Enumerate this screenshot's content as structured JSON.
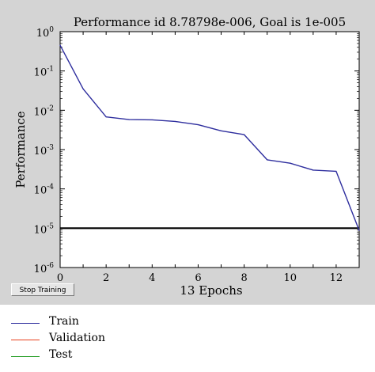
{
  "chart_data": {
    "type": "line",
    "title": "Performance id 8.78798e-006, Goal is 1e-005",
    "xlabel": "13 Epochs",
    "ylabel": "Performance",
    "xlim": [
      0,
      13
    ],
    "ylim_log10": [
      -6,
      0
    ],
    "yscale": "log",
    "x_ticks": [
      "0",
      "2",
      "4",
      "6",
      "8",
      "10",
      "12"
    ],
    "y_ticks": [
      {
        "base": "10",
        "exp": "0"
      },
      {
        "base": "10",
        "exp": "-1"
      },
      {
        "base": "10",
        "exp": "-2"
      },
      {
        "base": "10",
        "exp": "-3"
      },
      {
        "base": "10",
        "exp": "-4"
      },
      {
        "base": "10",
        "exp": "-5"
      },
      {
        "base": "10",
        "exp": "-6"
      }
    ],
    "series": [
      {
        "name": "Train",
        "color": "#2e2e9e",
        "x": [
          0,
          1,
          2,
          3,
          4,
          5,
          6,
          7,
          8,
          9,
          10,
          11,
          12,
          13
        ],
        "y": [
          0.45,
          0.035,
          0.0068,
          0.0058,
          0.0057,
          0.0052,
          0.0043,
          0.003,
          0.0024,
          0.00055,
          0.00045,
          0.0003,
          0.00028,
          8.8e-06
        ]
      }
    ],
    "goal": {
      "value": 1e-05,
      "color": "#000000"
    },
    "legend": [
      {
        "label": "Train",
        "color": "#2e2e9e"
      },
      {
        "label": "Validation",
        "color": "#e8401c"
      },
      {
        "label": "Test",
        "color": "#2aa02a"
      }
    ],
    "legend_placement": "bottom-left",
    "grid": false
  },
  "controls": {
    "stop_label": "Stop Training"
  }
}
